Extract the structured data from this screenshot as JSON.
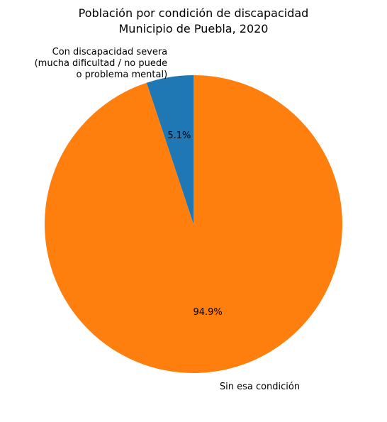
{
  "chart_data": {
    "type": "pie",
    "title": [
      "Población por condición de discapacidad",
      "Municipio de Puebla, 2020"
    ],
    "slices": [
      {
        "label": [
          "Con discapacidad severa",
          "(mucha dificultad / no puede",
          "o problema mental)"
        ],
        "value": 5.1,
        "pct_label": "5.1%",
        "color": "#1f77b4"
      },
      {
        "label": [
          "Sin esa condición"
        ],
        "value": 94.9,
        "pct_label": "94.9%",
        "color": "#ff7f0e"
      }
    ],
    "start_angle_deg": 90,
    "direction": "counterclockwise",
    "legend": "none"
  }
}
